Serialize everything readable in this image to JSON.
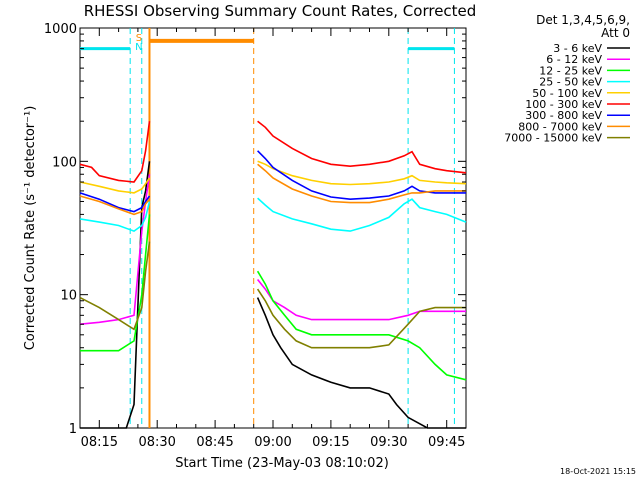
{
  "window": {
    "title": "RHESSI Observing Summary Count Rates, Corrected",
    "timestamp": "18-Oct-2021 15:15"
  },
  "colors": {
    "background": "#ffffff",
    "axis": "#000000",
    "attenuator_marker": "#00e5ee",
    "saa_marker": "#ff8c00"
  },
  "chart_data": {
    "type": "line",
    "title": "RHESSI Observing Summary Count Rates, Corrected",
    "xlabel": "Start Time (23-May-03 08:10:02)",
    "ylabel": "Corrected Count Rate (s⁻¹ detector⁻¹)",
    "y_scale": "log",
    "xlim": [
      "08:10",
      "09:50"
    ],
    "ylim": [
      1,
      1000
    ],
    "x_ticks": [
      "08:15",
      "08:30",
      "08:45",
      "09:00",
      "09:15",
      "09:30",
      "09:45"
    ],
    "y_ticks": [
      "1",
      "10",
      "100",
      "1000"
    ],
    "legend_header": [
      "Det 1,3,4,5,6,9,",
      "Att 0"
    ],
    "legend_position": "right",
    "grid": false,
    "markers": {
      "labels": [
        "S",
        "N"
      ],
      "cyan_lines": [
        "08:23",
        "08:26",
        "09:35",
        "09:47"
      ],
      "orange_lines": [
        "08:28",
        "08:55"
      ],
      "orange_bar": [
        "08:28",
        "08:55",
        800
      ],
      "cyan_bars": [
        [
          "08:10",
          "08:23",
          700
        ],
        [
          "09:35",
          "09:47",
          700
        ]
      ]
    },
    "series": [
      {
        "name": "3 - 6 keV",
        "color": "#000000",
        "gap": [
          "08:28",
          "08:55"
        ],
        "points": [
          [
            "08:10",
            1.0
          ],
          [
            "08:22",
            1.0
          ],
          [
            "08:24",
            1.5
          ],
          [
            "08:26",
            45
          ],
          [
            "08:27",
            60
          ],
          [
            "08:28",
            100
          ],
          [
            "08:56",
            9.5
          ],
          [
            "08:58",
            7
          ],
          [
            "09:00",
            5
          ],
          [
            "09:02",
            4
          ],
          [
            "09:05",
            3
          ],
          [
            "09:10",
            2.5
          ],
          [
            "09:15",
            2.2
          ],
          [
            "09:20",
            2
          ],
          [
            "09:25",
            2
          ],
          [
            "09:30",
            1.8
          ],
          [
            "09:32",
            1.5
          ],
          [
            "09:35",
            1.2
          ],
          [
            "09:40",
            1.0
          ],
          [
            "09:50",
            1.0
          ]
        ]
      },
      {
        "name": "6 - 12 keV",
        "color": "#ff00ff",
        "gap": [
          "08:28",
          "08:55"
        ],
        "points": [
          [
            "08:10",
            6
          ],
          [
            "08:15",
            6.2
          ],
          [
            "08:20",
            6.5
          ],
          [
            "08:24",
            7
          ],
          [
            "08:26",
            30
          ],
          [
            "08:27",
            50
          ],
          [
            "08:28",
            80
          ],
          [
            "08:56",
            13
          ],
          [
            "08:58",
            11
          ],
          [
            "09:00",
            9
          ],
          [
            "09:03",
            8
          ],
          [
            "09:06",
            7
          ],
          [
            "09:10",
            6.5
          ],
          [
            "09:15",
            6.5
          ],
          [
            "09:20",
            6.5
          ],
          [
            "09:25",
            6.5
          ],
          [
            "09:30",
            6.5
          ],
          [
            "09:35",
            7
          ],
          [
            "09:38",
            7.5
          ],
          [
            "09:45",
            7.5
          ],
          [
            "09:50",
            7.5
          ]
        ]
      },
      {
        "name": "12 - 25 keV",
        "color": "#00ff00",
        "gap": [
          "08:28",
          "08:55"
        ],
        "points": [
          [
            "08:10",
            3.8
          ],
          [
            "08:15",
            3.8
          ],
          [
            "08:20",
            3.8
          ],
          [
            "08:24",
            4.5
          ],
          [
            "08:26",
            10
          ],
          [
            "08:27",
            20
          ],
          [
            "08:28",
            40
          ],
          [
            "08:56",
            15
          ],
          [
            "08:58",
            12
          ],
          [
            "09:00",
            9
          ],
          [
            "09:03",
            7
          ],
          [
            "09:06",
            5.5
          ],
          [
            "09:10",
            5
          ],
          [
            "09:15",
            5
          ],
          [
            "09:20",
            5
          ],
          [
            "09:25",
            5
          ],
          [
            "09:30",
            5
          ],
          [
            "09:35",
            4.5
          ],
          [
            "09:38",
            4
          ],
          [
            "09:42",
            3
          ],
          [
            "09:45",
            2.5
          ],
          [
            "09:50",
            2.3
          ]
        ]
      },
      {
        "name": "25 - 50 keV",
        "color": "#00ffff",
        "gap": [
          "08:28",
          "08:55"
        ],
        "points": [
          [
            "08:10",
            37
          ],
          [
            "08:15",
            35
          ],
          [
            "08:20",
            33
          ],
          [
            "08:24",
            30
          ],
          [
            "08:26",
            33
          ],
          [
            "08:27",
            38
          ],
          [
            "08:28",
            50
          ],
          [
            "08:56",
            53
          ],
          [
            "08:58",
            47
          ],
          [
            "09:00",
            42
          ],
          [
            "09:05",
            37
          ],
          [
            "09:10",
            34
          ],
          [
            "09:15",
            31
          ],
          [
            "09:20",
            30
          ],
          [
            "09:25",
            33
          ],
          [
            "09:30",
            38
          ],
          [
            "09:34",
            48
          ],
          [
            "09:36",
            52
          ],
          [
            "09:38",
            45
          ],
          [
            "09:42",
            42
          ],
          [
            "09:45",
            40
          ],
          [
            "09:50",
            35
          ]
        ]
      },
      {
        "name": "50 - 100 keV",
        "color": "#ffd000",
        "gap": [
          "08:28",
          "08:55"
        ],
        "points": [
          [
            "08:10",
            70
          ],
          [
            "08:15",
            65
          ],
          [
            "08:20",
            60
          ],
          [
            "08:24",
            58
          ],
          [
            "08:26",
            62
          ],
          [
            "08:27",
            68
          ],
          [
            "08:28",
            75
          ],
          [
            "08:56",
            100
          ],
          [
            "08:58",
            95
          ],
          [
            "09:00",
            88
          ],
          [
            "09:05",
            78
          ],
          [
            "09:10",
            72
          ],
          [
            "09:15",
            68
          ],
          [
            "09:20",
            67
          ],
          [
            "09:25",
            68
          ],
          [
            "09:30",
            70
          ],
          [
            "09:34",
            74
          ],
          [
            "09:36",
            78
          ],
          [
            "09:38",
            72
          ],
          [
            "09:42",
            70
          ],
          [
            "09:45",
            69
          ],
          [
            "09:50",
            68
          ]
        ]
      },
      {
        "name": "100 - 300 keV",
        "color": "#ff0000",
        "gap": [
          "08:28",
          "08:55"
        ],
        "points": [
          [
            "08:10",
            95
          ],
          [
            "08:13",
            90
          ],
          [
            "08:15",
            78
          ],
          [
            "08:20",
            72
          ],
          [
            "08:24",
            70
          ],
          [
            "08:26",
            85
          ],
          [
            "08:27",
            120
          ],
          [
            "08:28",
            200
          ],
          [
            "08:56",
            200
          ],
          [
            "08:58",
            180
          ],
          [
            "09:00",
            155
          ],
          [
            "09:05",
            125
          ],
          [
            "09:10",
            105
          ],
          [
            "09:15",
            95
          ],
          [
            "09:20",
            92
          ],
          [
            "09:25",
            95
          ],
          [
            "09:30",
            100
          ],
          [
            "09:34",
            110
          ],
          [
            "09:36",
            118
          ],
          [
            "09:38",
            95
          ],
          [
            "09:42",
            88
          ],
          [
            "09:45",
            85
          ],
          [
            "09:50",
            82
          ]
        ]
      },
      {
        "name": "300 - 800 keV",
        "color": "#0000ff",
        "gap": [
          "08:28",
          "08:55"
        ],
        "points": [
          [
            "08:10",
            58
          ],
          [
            "08:15",
            52
          ],
          [
            "08:20",
            45
          ],
          [
            "08:24",
            42
          ],
          [
            "08:26",
            45
          ],
          [
            "08:27",
            50
          ],
          [
            "08:28",
            55
          ],
          [
            "08:56",
            120
          ],
          [
            "08:58",
            105
          ],
          [
            "09:00",
            90
          ],
          [
            "09:05",
            72
          ],
          [
            "09:10",
            60
          ],
          [
            "09:15",
            54
          ],
          [
            "09:20",
            52
          ],
          [
            "09:25",
            53
          ],
          [
            "09:30",
            55
          ],
          [
            "09:34",
            60
          ],
          [
            "09:36",
            65
          ],
          [
            "09:38",
            60
          ],
          [
            "09:42",
            58
          ],
          [
            "09:45",
            58
          ],
          [
            "09:50",
            58
          ]
        ]
      },
      {
        "name": "800 - 7000 keV",
        "color": "#ff8c00",
        "gap": [
          "08:28",
          "08:55"
        ],
        "points": [
          [
            "08:10",
            55
          ],
          [
            "08:15",
            50
          ],
          [
            "08:20",
            44
          ],
          [
            "08:24",
            40
          ],
          [
            "08:26",
            42
          ],
          [
            "08:27",
            48
          ],
          [
            "08:28",
            52
          ],
          [
            "08:56",
            95
          ],
          [
            "08:58",
            85
          ],
          [
            "09:00",
            75
          ],
          [
            "09:05",
            62
          ],
          [
            "09:10",
            55
          ],
          [
            "09:15",
            50
          ],
          [
            "09:20",
            49
          ],
          [
            "09:25",
            49
          ],
          [
            "09:30",
            52
          ],
          [
            "09:34",
            56
          ],
          [
            "09:36",
            58
          ],
          [
            "09:38",
            58
          ],
          [
            "09:42",
            60
          ],
          [
            "09:45",
            60
          ],
          [
            "09:50",
            60
          ]
        ]
      },
      {
        "name": "7000 - 15000 keV",
        "color": "#808000",
        "gap": [
          "08:28",
          "08:55"
        ],
        "points": [
          [
            "08:10",
            9.5
          ],
          [
            "08:15",
            8
          ],
          [
            "08:20",
            6.5
          ],
          [
            "08:24",
            5.5
          ],
          [
            "08:26",
            8
          ],
          [
            "08:27",
            15
          ],
          [
            "08:28",
            25
          ],
          [
            "08:56",
            11
          ],
          [
            "08:58",
            9
          ],
          [
            "09:00",
            7
          ],
          [
            "09:03",
            5.5
          ],
          [
            "09:06",
            4.5
          ],
          [
            "09:10",
            4
          ],
          [
            "09:15",
            4
          ],
          [
            "09:20",
            4
          ],
          [
            "09:25",
            4
          ],
          [
            "09:30",
            4.2
          ],
          [
            "09:35",
            6
          ],
          [
            "09:38",
            7.5
          ],
          [
            "09:42",
            8
          ],
          [
            "09:45",
            8
          ],
          [
            "09:50",
            8
          ]
        ]
      }
    ]
  }
}
